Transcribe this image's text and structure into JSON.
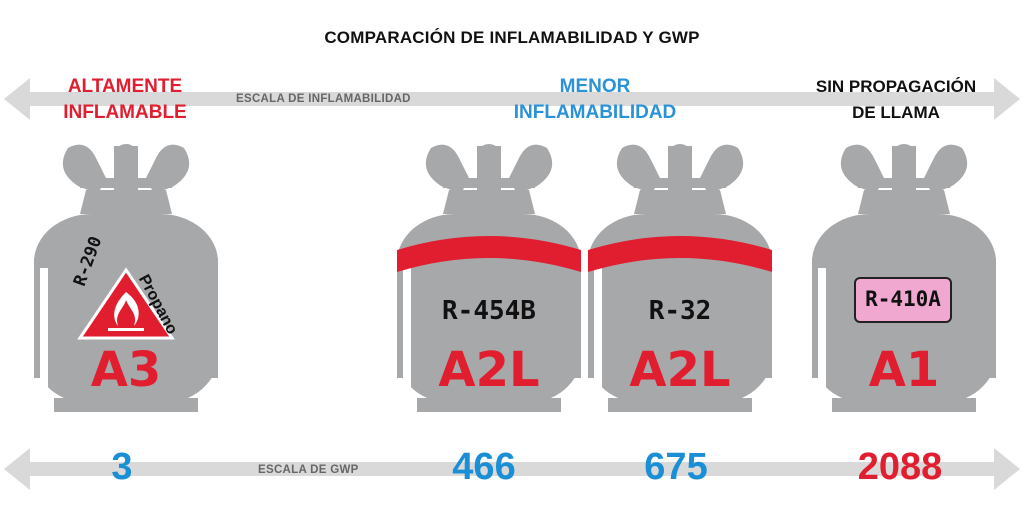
{
  "title": "COMPARACIÓN DE INFLAMABILIDAD Y GWP",
  "flammability_scale": {
    "label": "ESCALA DE INFLAMABILIDAD",
    "left_label_line1": "ALTAMENTE",
    "left_label_line2": "INFLAMABLE",
    "middle_label_line1": "MENOR",
    "middle_label_line2": "INFLAMABILIDAD",
    "right_label_line1": "SIN PROPAGACIÓN",
    "right_label_line2": "DE LLAMA"
  },
  "gwp_scale": {
    "label": "ESCALA DE GWP"
  },
  "tanks": [
    {
      "refrigerant": "R-290",
      "name": "Propano",
      "class": "A3",
      "gwp": "3"
    },
    {
      "refrigerant": "R-454B",
      "class": "A2L",
      "gwp": "466"
    },
    {
      "refrigerant": "R-32",
      "class": "A2L",
      "gwp": "675"
    },
    {
      "refrigerant": "R-410A",
      "class": "A1",
      "gwp": "2088"
    }
  ],
  "colors": {
    "red": "#e01e2f",
    "blue": "#1b8fd6",
    "tank_gray": "#a7a8aa",
    "arrow_gray": "#d9d9d9",
    "tag_pink": "#f0a8d0"
  }
}
